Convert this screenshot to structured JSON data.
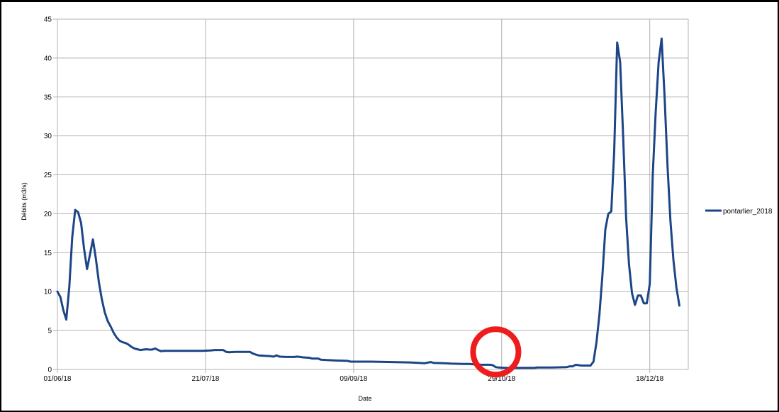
{
  "chart_data": {
    "type": "line",
    "title": "",
    "xlabel": "Date",
    "ylabel": "Débits (m3/s)",
    "ylim": [
      0,
      45
    ],
    "xlim": [
      "2018-06-01",
      "2018-12-31"
    ],
    "grid": true,
    "legend_position": "right",
    "y_ticks": [
      0,
      5,
      10,
      15,
      20,
      25,
      30,
      35,
      40,
      45
    ],
    "x_ticks": [
      {
        "date": "2018-06-01",
        "label": "01/06/18"
      },
      {
        "date": "2018-07-21",
        "label": "21/07/18"
      },
      {
        "date": "2018-09-09",
        "label": "09/09/18"
      },
      {
        "date": "2018-10-29",
        "label": "29/10/18"
      },
      {
        "date": "2018-12-18",
        "label": "18/12/18"
      }
    ],
    "series": [
      {
        "name": "pontarlier_2018",
        "color": "#1c4587",
        "points": [
          [
            "2018-06-01",
            10.0
          ],
          [
            "2018-06-02",
            9.3
          ],
          [
            "2018-06-03",
            7.6
          ],
          [
            "2018-06-04",
            6.4
          ],
          [
            "2018-06-05",
            10.5
          ],
          [
            "2018-06-06",
            17.0
          ],
          [
            "2018-06-07",
            20.5
          ],
          [
            "2018-06-08",
            20.2
          ],
          [
            "2018-06-09",
            18.8
          ],
          [
            "2018-06-10",
            15.5
          ],
          [
            "2018-06-11",
            12.9
          ],
          [
            "2018-06-12",
            14.8
          ],
          [
            "2018-06-13",
            16.7
          ],
          [
            "2018-06-14",
            14.2
          ],
          [
            "2018-06-15",
            11.2
          ],
          [
            "2018-06-16",
            9.0
          ],
          [
            "2018-06-17",
            7.3
          ],
          [
            "2018-06-18",
            6.2
          ],
          [
            "2018-06-19",
            5.5
          ],
          [
            "2018-06-20",
            4.7
          ],
          [
            "2018-06-21",
            4.1
          ],
          [
            "2018-06-22",
            3.7
          ],
          [
            "2018-06-23",
            3.5
          ],
          [
            "2018-06-24",
            3.4
          ],
          [
            "2018-06-25",
            3.2
          ],
          [
            "2018-06-26",
            2.9
          ],
          [
            "2018-06-27",
            2.7
          ],
          [
            "2018-06-28",
            2.6
          ],
          [
            "2018-06-29",
            2.5
          ],
          [
            "2018-06-30",
            2.55
          ],
          [
            "2018-07-01",
            2.6
          ],
          [
            "2018-07-02",
            2.55
          ],
          [
            "2018-07-03",
            2.55
          ],
          [
            "2018-07-04",
            2.7
          ],
          [
            "2018-07-05",
            2.5
          ],
          [
            "2018-07-06",
            2.35
          ],
          [
            "2018-07-07",
            2.4
          ],
          [
            "2018-07-10",
            2.4
          ],
          [
            "2018-07-15",
            2.4
          ],
          [
            "2018-07-20",
            2.4
          ],
          [
            "2018-07-23",
            2.45
          ],
          [
            "2018-07-24",
            2.5
          ],
          [
            "2018-07-27",
            2.5
          ],
          [
            "2018-07-28",
            2.25
          ],
          [
            "2018-07-29",
            2.2
          ],
          [
            "2018-07-31",
            2.25
          ],
          [
            "2018-08-03",
            2.25
          ],
          [
            "2018-08-05",
            2.25
          ],
          [
            "2018-08-06",
            2.05
          ],
          [
            "2018-08-07",
            1.9
          ],
          [
            "2018-08-08",
            1.8
          ],
          [
            "2018-08-10",
            1.75
          ],
          [
            "2018-08-12",
            1.7
          ],
          [
            "2018-08-13",
            1.65
          ],
          [
            "2018-08-14",
            1.8
          ],
          [
            "2018-08-15",
            1.65
          ],
          [
            "2018-08-17",
            1.6
          ],
          [
            "2018-08-20",
            1.6
          ],
          [
            "2018-08-21",
            1.65
          ],
          [
            "2018-08-23",
            1.55
          ],
          [
            "2018-08-25",
            1.5
          ],
          [
            "2018-08-26",
            1.4
          ],
          [
            "2018-08-28",
            1.4
          ],
          [
            "2018-08-29",
            1.25
          ],
          [
            "2018-08-31",
            1.2
          ],
          [
            "2018-09-03",
            1.15
          ],
          [
            "2018-09-07",
            1.1
          ],
          [
            "2018-09-08",
            1.0
          ],
          [
            "2018-09-15",
            1.0
          ],
          [
            "2018-09-22",
            0.95
          ],
          [
            "2018-09-28",
            0.9
          ],
          [
            "2018-10-01",
            0.85
          ],
          [
            "2018-10-03",
            0.8
          ],
          [
            "2018-10-05",
            0.95
          ],
          [
            "2018-10-06",
            0.85
          ],
          [
            "2018-10-10",
            0.8
          ],
          [
            "2018-10-12",
            0.75
          ],
          [
            "2018-10-16",
            0.7
          ],
          [
            "2018-10-18",
            0.7
          ],
          [
            "2018-10-20",
            0.65
          ],
          [
            "2018-10-22",
            0.6
          ],
          [
            "2018-10-25",
            0.6
          ],
          [
            "2018-10-26",
            0.55
          ],
          [
            "2018-10-27",
            0.3
          ],
          [
            "2018-10-28",
            0.25
          ],
          [
            "2018-10-30",
            0.2
          ],
          [
            "2018-11-03",
            0.2
          ],
          [
            "2018-11-06",
            0.2
          ],
          [
            "2018-11-09",
            0.2
          ],
          [
            "2018-11-10",
            0.25
          ],
          [
            "2018-11-15",
            0.25
          ],
          [
            "2018-11-20",
            0.3
          ],
          [
            "2018-11-21",
            0.4
          ],
          [
            "2018-11-22",
            0.4
          ],
          [
            "2018-11-23",
            0.6
          ],
          [
            "2018-11-24",
            0.55
          ],
          [
            "2018-11-25",
            0.5
          ],
          [
            "2018-11-28",
            0.5
          ],
          [
            "2018-11-29",
            1.0
          ],
          [
            "2018-11-30",
            3.5
          ],
          [
            "2018-12-01",
            7.0
          ],
          [
            "2018-12-02",
            12.0
          ],
          [
            "2018-12-03",
            18.0
          ],
          [
            "2018-12-04",
            20.0
          ],
          [
            "2018-12-05",
            20.3
          ],
          [
            "2018-12-06",
            28.0
          ],
          [
            "2018-12-07",
            42.0
          ],
          [
            "2018-12-08",
            39.5
          ],
          [
            "2018-12-09",
            30.0
          ],
          [
            "2018-12-10",
            19.5
          ],
          [
            "2018-12-11",
            13.5
          ],
          [
            "2018-12-12",
            9.8
          ],
          [
            "2018-12-13",
            8.3
          ],
          [
            "2018-12-14",
            9.5
          ],
          [
            "2018-12-15",
            9.5
          ],
          [
            "2018-12-16",
            8.5
          ],
          [
            "2018-12-17",
            8.5
          ],
          [
            "2018-12-18",
            11.0
          ],
          [
            "2018-12-19",
            25.0
          ],
          [
            "2018-12-20",
            33.0
          ],
          [
            "2018-12-21",
            39.5
          ],
          [
            "2018-12-22",
            42.5
          ],
          [
            "2018-12-23",
            35.0
          ],
          [
            "2018-12-24",
            26.0
          ],
          [
            "2018-12-25",
            19.0
          ],
          [
            "2018-12-26",
            14.0
          ],
          [
            "2018-12-27",
            10.5
          ],
          [
            "2018-12-28",
            8.2
          ]
        ]
      }
    ],
    "annotations": [
      {
        "type": "circle",
        "color": "#ee1c1c",
        "date": "2018-10-27",
        "value": 0.8
      }
    ]
  }
}
